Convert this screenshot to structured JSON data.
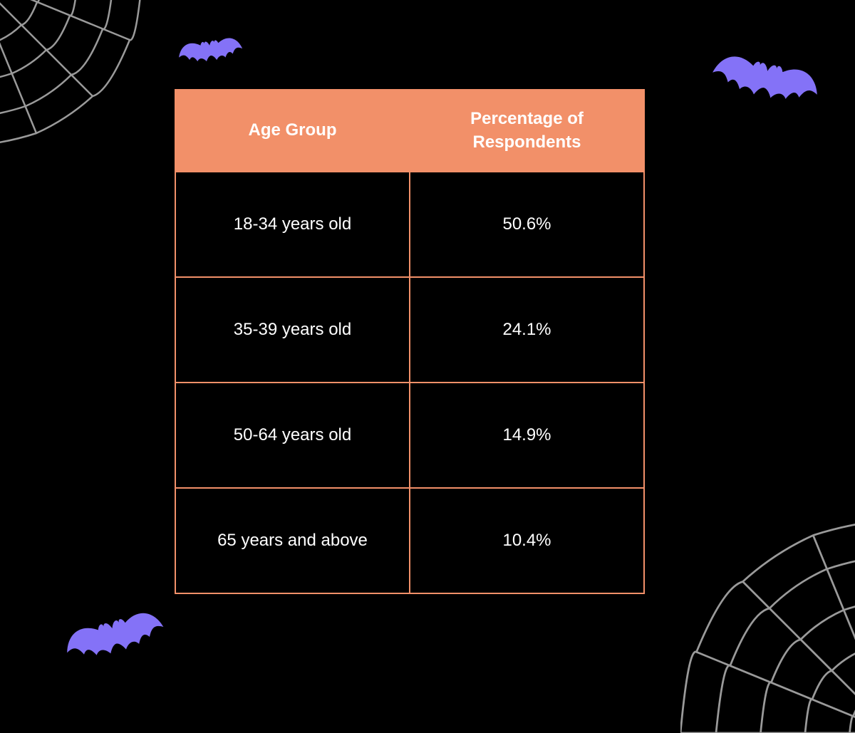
{
  "table": {
    "columns": [
      "Age Group",
      "Percentage of Respondents"
    ],
    "rows": [
      [
        "18-34 years old",
        "50.6%"
      ],
      [
        "35-39 years old",
        "24.1%"
      ],
      [
        "50-64 years old",
        "14.9%"
      ],
      [
        "65 years and above",
        "10.4%"
      ]
    ],
    "header_bg": "#f29069",
    "header_text_color": "#ffffff",
    "cell_bg": "#000000",
    "cell_text_color": "#ffffff",
    "border_color": "#f29069",
    "header_fontsize": 24,
    "cell_fontsize": 24,
    "col_widths_pct": [
      50,
      50
    ]
  },
  "decorations": {
    "bat_color": "#8472f7",
    "web_color": "#9a9a9a",
    "background_color": "#000000"
  }
}
